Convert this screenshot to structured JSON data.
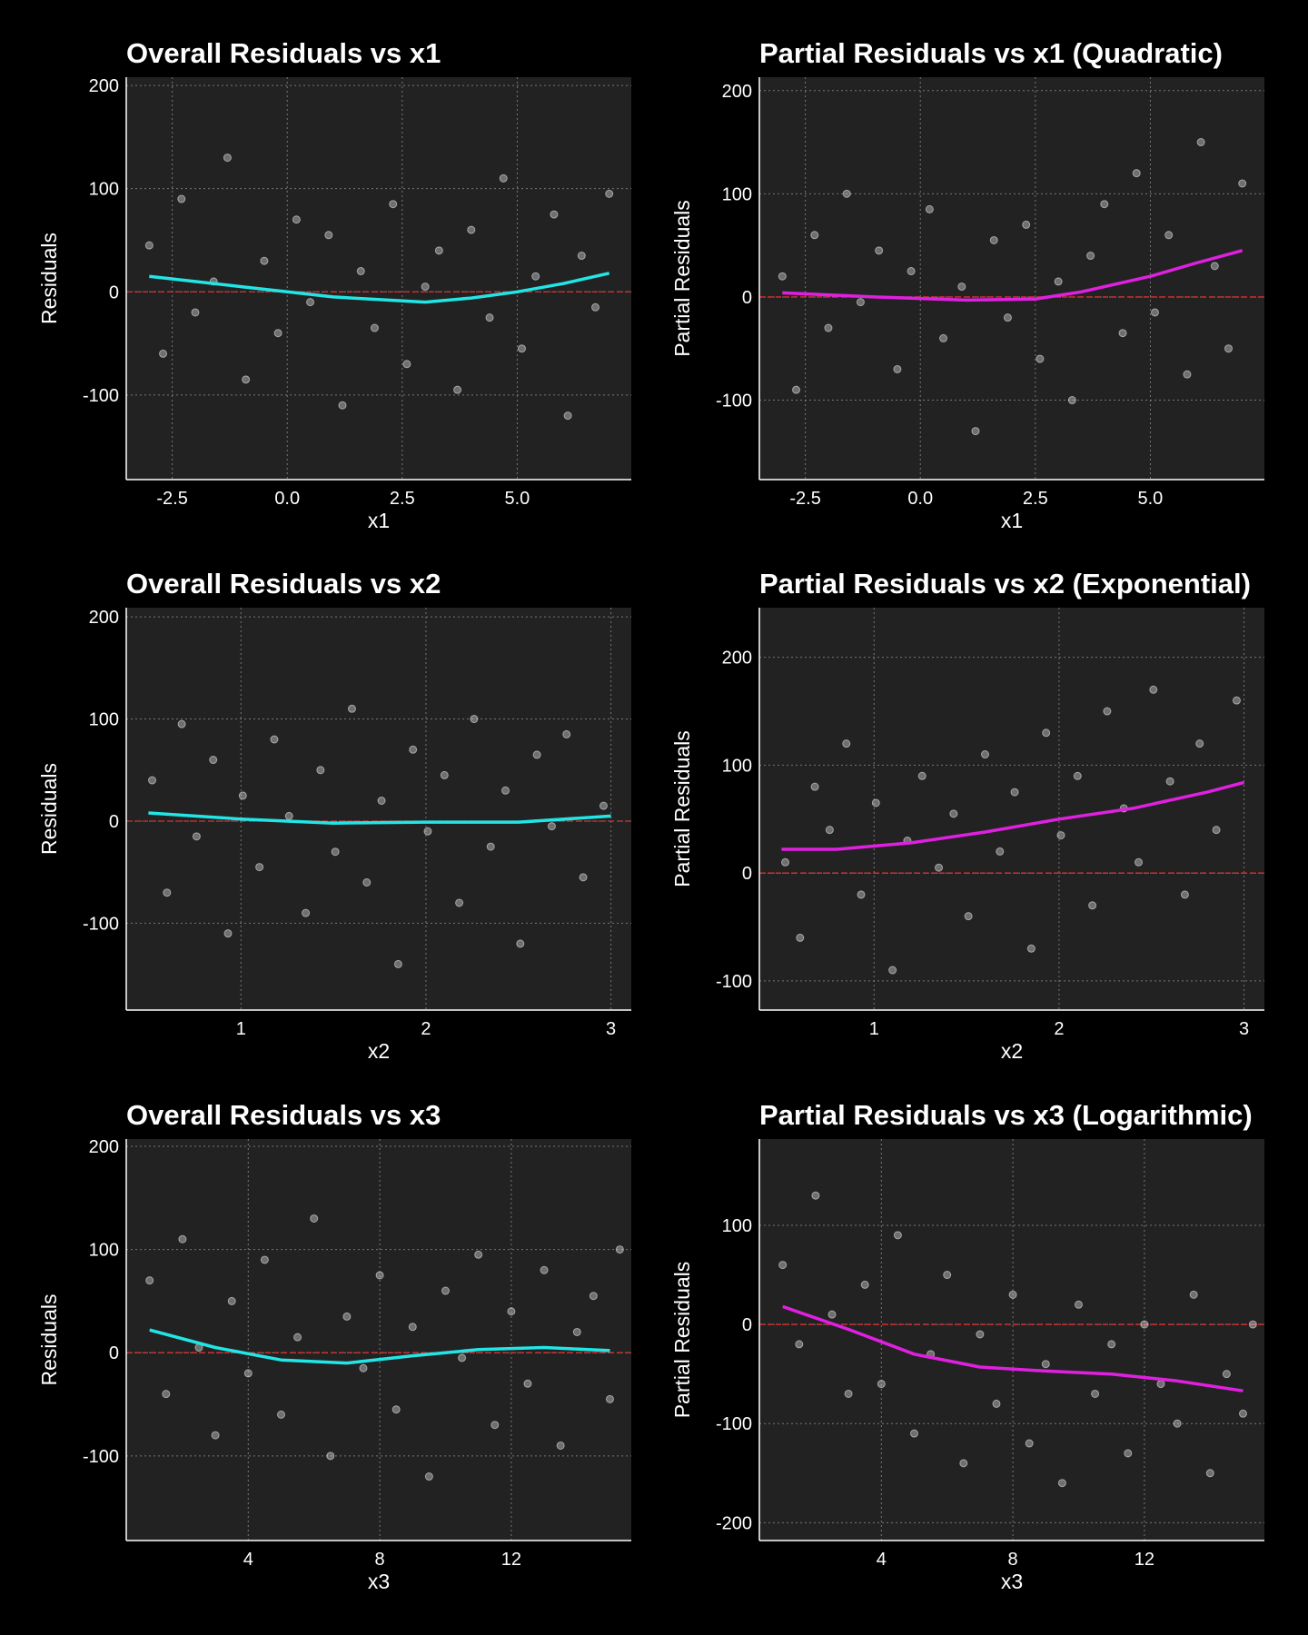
{
  "chart_data": [
    {
      "type": "scatter",
      "title": "Overall Residuals vs x1",
      "xlabel": "x1",
      "ylabel": "Residuals",
      "xlim": [
        -3.5,
        7.48
      ],
      "ylim": [
        -182,
        208
      ],
      "xticks": [
        -2.5,
        {
          "value": 0,
          "label": "0.0"
        },
        2.5,
        {
          "value": 5,
          "label": "5.0"
        }
      ],
      "yticks": [
        -100,
        0,
        100,
        200
      ],
      "grid": true,
      "hline": 0,
      "hline_color": "#e03030",
      "series": [
        {
          "type": "scatter",
          "color": "#ffffff",
          "x": [
            -3,
            -2.7,
            -2.3,
            -2,
            -1.6,
            -1.3,
            -0.9,
            -0.5,
            -0.2,
            0.2,
            0.5,
            0.9,
            1.2,
            1.6,
            1.9,
            2.3,
            2.6,
            3,
            3.3,
            3.7,
            4,
            4.4,
            4.7,
            5.1,
            5.4,
            5.8,
            6.1,
            6.4,
            6.7,
            7
          ],
          "values": [
            45,
            -60,
            90,
            -20,
            10,
            130,
            -85,
            30,
            -40,
            70,
            -10,
            55,
            -110,
            20,
            -35,
            85,
            -70,
            5,
            40,
            -95,
            60,
            -25,
            110,
            -55,
            15,
            75,
            -120,
            35,
            -15,
            95
          ]
        },
        {
          "type": "line",
          "color": "#22e5e5",
          "x": [
            -3,
            -1,
            1,
            3,
            4,
            5,
            6,
            7
          ],
          "values": [
            15,
            5,
            -5,
            -10,
            -6,
            0,
            8,
            18
          ]
        }
      ]
    },
    {
      "type": "scatter",
      "title": "Partial Residuals vs x1 (Quadratic)",
      "xlabel": "x1",
      "ylabel": "Partial Residuals",
      "xlim": [
        -3.5,
        7.48
      ],
      "ylim": [
        -177,
        213
      ],
      "xticks": [
        -2.5,
        {
          "value": 0,
          "label": "0.0"
        },
        2.5,
        {
          "value": 5,
          "label": "5.0"
        }
      ],
      "yticks": [
        -100,
        0,
        100,
        200
      ],
      "grid": true,
      "hline": 0,
      "hline_color": "#e03030",
      "series": [
        {
          "type": "scatter",
          "color": "#ffffff",
          "x": [
            -3,
            -2.7,
            -2.3,
            -2,
            -1.6,
            -1.3,
            -0.9,
            -0.5,
            -0.2,
            0.2,
            0.5,
            0.9,
            1.2,
            1.6,
            1.9,
            2.3,
            2.6,
            3,
            3.3,
            3.7,
            4,
            4.4,
            4.7,
            5.1,
            5.4,
            5.8,
            6.1,
            6.4,
            6.7,
            7
          ],
          "values": [
            20,
            -90,
            60,
            -30,
            100,
            -5,
            45,
            -70,
            25,
            85,
            -40,
            10,
            -130,
            55,
            -20,
            70,
            -60,
            15,
            -100,
            40,
            90,
            -35,
            120,
            -15,
            60,
            -75,
            150,
            30,
            -50,
            110
          ]
        },
        {
          "type": "line",
          "color": "#e020e0",
          "x": [
            -3,
            -1,
            1,
            2.5,
            3.5,
            5,
            6,
            7
          ],
          "values": [
            4,
            0,
            -3,
            -2,
            5,
            20,
            33,
            45
          ]
        }
      ]
    },
    {
      "type": "scatter",
      "title": "Overall Residuals vs x2",
      "xlabel": "x2",
      "ylabel": "Residuals",
      "xlim": [
        0.38,
        3.11
      ],
      "ylim": [
        -185,
        209
      ],
      "xticks": [
        1,
        2,
        3
      ],
      "yticks": [
        -100,
        0,
        100,
        200
      ],
      "grid": true,
      "hline": 0,
      "hline_color": "#e03030",
      "series": [
        {
          "type": "scatter",
          "color": "#ffffff",
          "x": [
            0.52,
            0.6,
            0.68,
            0.76,
            0.85,
            0.93,
            1.01,
            1.1,
            1.18,
            1.26,
            1.35,
            1.43,
            1.51,
            1.6,
            1.68,
            1.76,
            1.85,
            1.93,
            2.01,
            2.1,
            2.18,
            2.26,
            2.35,
            2.43,
            2.51,
            2.6,
            2.68,
            2.76,
            2.85,
            2.96
          ],
          "values": [
            40,
            -70,
            95,
            -15,
            60,
            -110,
            25,
            -45,
            80,
            5,
            -90,
            50,
            -30,
            110,
            -60,
            20,
            -140,
            70,
            -10,
            45,
            -80,
            100,
            -25,
            30,
            -120,
            65,
            -5,
            85,
            -55,
            15
          ]
        },
        {
          "type": "line",
          "color": "#22e5e5",
          "x": [
            0.5,
            1,
            1.5,
            2,
            2.5,
            3
          ],
          "values": [
            8,
            2,
            -2,
            -1,
            -1,
            5
          ]
        }
      ]
    },
    {
      "type": "scatter",
      "title": "Partial Residuals vs x2 (Exponential)",
      "xlabel": "x2",
      "ylabel": "Partial Residuals",
      "xlim": [
        0.38,
        3.11
      ],
      "ylim": [
        -127,
        246
      ],
      "xticks": [
        1,
        2,
        3
      ],
      "yticks": [
        -100,
        0,
        100,
        200
      ],
      "grid": true,
      "hline": 0,
      "hline_color": "#e03030",
      "series": [
        {
          "type": "scatter",
          "color": "#ffffff",
          "x": [
            0.52,
            0.6,
            0.68,
            0.76,
            0.85,
            0.93,
            1.01,
            1.1,
            1.18,
            1.26,
            1.35,
            1.43,
            1.51,
            1.6,
            1.68,
            1.76,
            1.85,
            1.93,
            2.01,
            2.1,
            2.18,
            2.26,
            2.35,
            2.43,
            2.51,
            2.6,
            2.68,
            2.76,
            2.85,
            2.96
          ],
          "values": [
            10,
            -60,
            80,
            40,
            120,
            -20,
            65,
            -90,
            30,
            90,
            5,
            55,
            -40,
            110,
            20,
            75,
            -70,
            130,
            35,
            90,
            -30,
            150,
            60,
            10,
            170,
            85,
            -20,
            120,
            40,
            160
          ]
        },
        {
          "type": "line",
          "color": "#e020e0",
          "x": [
            0.5,
            0.8,
            1.2,
            1.6,
            2,
            2.4,
            2.8,
            3
          ],
          "values": [
            22,
            22,
            28,
            38,
            50,
            60,
            75,
            84
          ]
        }
      ]
    },
    {
      "type": "scatter",
      "title": "Overall Residuals vs x3",
      "xlabel": "x3",
      "ylabel": "Residuals",
      "xlim": [
        0.29,
        15.65
      ],
      "ylim": [
        -182,
        207
      ],
      "xticks": [
        4,
        8,
        12
      ],
      "yticks": [
        -100,
        0,
        100,
        200
      ],
      "grid": true,
      "hline": 0,
      "hline_color": "#e03030",
      "series": [
        {
          "type": "scatter",
          "color": "#ffffff",
          "x": [
            1,
            1.5,
            2,
            2.5,
            3,
            3.5,
            4,
            4.5,
            5,
            5.5,
            6,
            6.5,
            7,
            7.5,
            8,
            8.5,
            9,
            9.5,
            10,
            10.5,
            11,
            11.5,
            12,
            12.5,
            13,
            13.5,
            14,
            14.5,
            15,
            15.3
          ],
          "values": [
            70,
            -40,
            110,
            5,
            -80,
            50,
            -20,
            90,
            -60,
            15,
            130,
            -100,
            35,
            -15,
            75,
            -55,
            25,
            -120,
            60,
            -5,
            95,
            -70,
            40,
            -30,
            80,
            -90,
            20,
            55,
            -45,
            100
          ]
        },
        {
          "type": "line",
          "color": "#22e5e5",
          "x": [
            1,
            3,
            5,
            7,
            9,
            11,
            13,
            15
          ],
          "values": [
            22,
            5,
            -7,
            -10,
            -3,
            3,
            5,
            2
          ]
        }
      ]
    },
    {
      "type": "scatter",
      "title": "Partial Residuals vs x3 (Logarithmic)",
      "xlabel": "x3",
      "ylabel": "Partial Residuals",
      "xlim": [
        0.29,
        15.65
      ],
      "ylim": [
        -218,
        187
      ],
      "xticks": [
        4,
        8,
        12
      ],
      "yticks": [
        -200,
        -100,
        0,
        100
      ],
      "grid": true,
      "hline": 0,
      "hline_color": "#e03030",
      "series": [
        {
          "type": "scatter",
          "color": "#ffffff",
          "x": [
            1,
            1.5,
            2,
            2.5,
            3,
            3.5,
            4,
            4.5,
            5,
            5.5,
            6,
            6.5,
            7,
            7.5,
            8,
            8.5,
            9,
            9.5,
            10,
            10.5,
            11,
            11.5,
            12,
            12.5,
            13,
            13.5,
            14,
            14.5,
            15,
            15.3
          ],
          "values": [
            60,
            -20,
            130,
            10,
            -70,
            40,
            -60,
            90,
            -110,
            -30,
            50,
            -140,
            -10,
            -80,
            30,
            -120,
            -40,
            -160,
            20,
            -70,
            -20,
            -130,
            0,
            -60,
            -100,
            30,
            -150,
            -50,
            -90,
            0
          ]
        },
        {
          "type": "line",
          "color": "#e020e0",
          "x": [
            1,
            3,
            5,
            7,
            9,
            11,
            13,
            15
          ],
          "values": [
            18,
            -5,
            -30,
            -43,
            -47,
            -50,
            -57,
            -67
          ]
        }
      ]
    }
  ]
}
